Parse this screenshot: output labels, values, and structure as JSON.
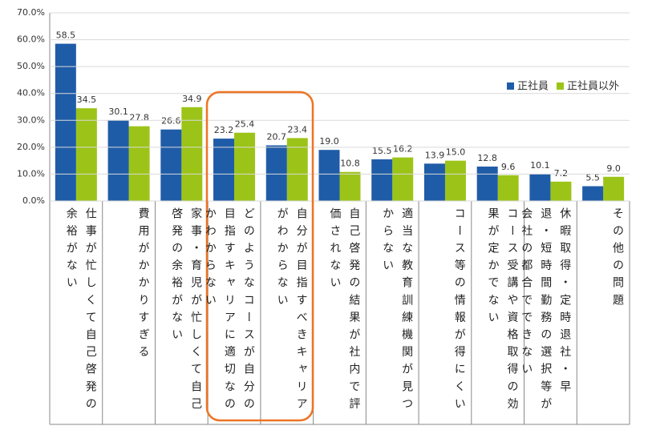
{
  "chart_data": {
    "type": "bar",
    "categories": [
      "仕事が忙しくて自己啓発の余裕がない",
      "費用がかかりすぎる",
      "家事・育児が忙しくて自己啓発の余裕がない",
      "どのようなコースが自分の目指すキャリアに適切なのかわからない",
      "自分が目指すべきキャリアがわからない",
      "自己啓発の結果が社内で評価されない",
      "適当な教育訓練機関が見つからない",
      "コース等の情報が得にくい",
      "コース受講や資格取得の効果が定かでない",
      "休暇取得・定時退社・早退・短時間勤務の選択等が会社の都合でできない",
      "その他の問題"
    ],
    "series": [
      {
        "name": "正社員",
        "color": "#1f5ca8",
        "values": [
          58.5,
          30.1,
          26.6,
          23.2,
          20.7,
          19.0,
          15.5,
          13.9,
          12.8,
          10.1,
          5.5
        ],
        "value_labels": [
          "58.5",
          "30.1",
          "26.6",
          "23.2",
          "20.7",
          "19.0",
          "15.5",
          "13.9",
          "12.8",
          "10.1",
          "5.5"
        ]
      },
      {
        "name": "正社員以外",
        "color": "#9cc418",
        "values": [
          34.5,
          27.8,
          34.9,
          25.4,
          23.4,
          10.8,
          16.2,
          15.0,
          9.6,
          7.2,
          9.0
        ],
        "value_labels": [
          "34.5",
          "27.8",
          "34.9",
          "25.4",
          "23.4",
          "10.8",
          "16.2",
          "15.0",
          "9.6",
          "7.2",
          "9.0"
        ]
      }
    ],
    "ylim": [
      0,
      70
    ],
    "yticks": [
      {
        "value": 0,
        "label": "0.0%"
      },
      {
        "value": 10,
        "label": "10.0%"
      },
      {
        "value": 20,
        "label": "20.0%"
      },
      {
        "value": 30,
        "label": "30.0%"
      },
      {
        "value": 40,
        "label": "40.0%"
      },
      {
        "value": 50,
        "label": "50.0%"
      },
      {
        "value": 60,
        "label": "60.0%"
      },
      {
        "value": 70,
        "label": "70.0%"
      }
    ],
    "grid": true,
    "legend": "right"
  }
}
